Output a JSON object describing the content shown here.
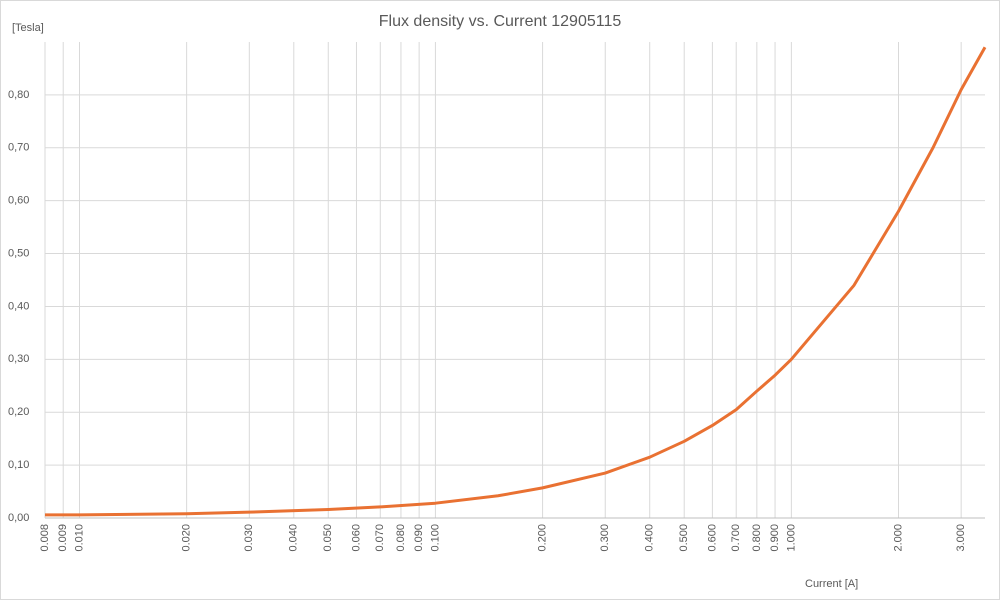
{
  "chart_data": {
    "type": "line",
    "title": "Flux density vs. Current 12905115",
    "y_label": "[Tesla]",
    "x_label": "Current [A]",
    "x_scale": "log",
    "grid": true,
    "xlim": [
      0.008,
      3.5
    ],
    "ylim": [
      0,
      0.9
    ],
    "xticks": [
      0.008,
      0.009,
      {
        "value": 0.01,
        "label": "0.010"
      },
      {
        "value": 0.02,
        "label": "0.020"
      },
      {
        "value": 0.03,
        "label": "0.030"
      },
      {
        "value": 0.04,
        "label": "0.040"
      },
      {
        "value": 0.05,
        "label": "0.050"
      },
      {
        "value": 0.06,
        "label": "0.060"
      },
      {
        "value": 0.07,
        "label": "0.070"
      },
      {
        "value": 0.08,
        "label": "0.080"
      },
      {
        "value": 0.09,
        "label": "0.090"
      },
      {
        "value": 0.1,
        "label": "0.100"
      },
      {
        "value": 0.2,
        "label": "0.200"
      },
      {
        "value": 0.3,
        "label": "0.300"
      },
      {
        "value": 0.4,
        "label": "0.400"
      },
      {
        "value": 0.5,
        "label": "0.500"
      },
      {
        "value": 0.6,
        "label": "0.600"
      },
      {
        "value": 0.7,
        "label": "0.700"
      },
      {
        "value": 0.8,
        "label": "0.800"
      },
      {
        "value": 0.9,
        "label": "0.900"
      },
      {
        "value": 1,
        "label": "1.000"
      },
      {
        "value": 2,
        "label": "2.000"
      },
      {
        "value": 3,
        "label": "3.000"
      }
    ],
    "yticks": [
      {
        "value": 0,
        "label": "0,00"
      },
      {
        "value": 0.1,
        "label": "0,10"
      },
      {
        "value": 0.2,
        "label": "0,20"
      },
      {
        "value": 0.3,
        "label": "0,30"
      },
      {
        "value": 0.4,
        "label": "0,40"
      },
      {
        "value": 0.5,
        "label": "0,50"
      },
      {
        "value": 0.6,
        "label": "0,60"
      },
      {
        "value": 0.7,
        "label": "0,70"
      },
      {
        "value": 0.8,
        "label": "0,80"
      }
    ],
    "x": [
      0.008,
      0.01,
      0.02,
      0.03,
      0.05,
      0.07,
      0.1,
      0.15,
      0.2,
      0.3,
      0.4,
      0.5,
      0.6,
      0.7,
      0.8,
      0.9,
      1,
      1.5,
      2,
      2.5,
      3,
      3.5
    ],
    "series": [
      {
        "color": "#e97132",
        "values": [
          0.006,
          0.006,
          0.008,
          0.011,
          0.016,
          0.021,
          0.028,
          0.042,
          0.057,
          0.085,
          0.115,
          0.145,
          0.175,
          0.205,
          0.24,
          0.27,
          0.3,
          0.44,
          0.58,
          0.7,
          0.81,
          0.89
        ]
      }
    ]
  }
}
